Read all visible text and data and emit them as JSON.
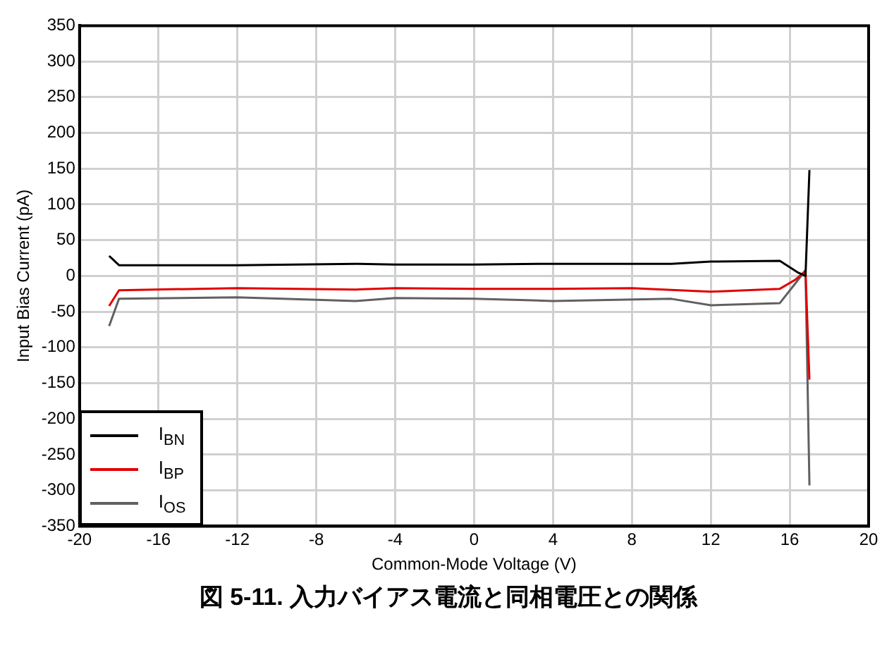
{
  "chart_data": {
    "type": "line",
    "title": "図 5-11. 入力バイアス電流と同相電圧との関係",
    "xlabel": "Common-Mode Voltage (V)",
    "ylabel": "Input Bias Current (pA)",
    "xlim": [
      -20,
      20
    ],
    "xticks": [
      -20,
      -16,
      -12,
      -8,
      -4,
      0,
      4,
      8,
      12,
      16,
      20
    ],
    "ylim": [
      -350,
      350
    ],
    "yticks": [
      -350,
      -300,
      -250,
      -200,
      -150,
      -100,
      -50,
      0,
      50,
      100,
      150,
      200,
      250,
      300,
      350
    ],
    "grid": true,
    "legend": "bottom left",
    "marker": "none",
    "line_style": "solid",
    "series": [
      {
        "name": "I$_{BN}$",
        "color": "#000000",
        "x": [
          -18.5,
          -18,
          -12,
          -6,
          -4,
          0,
          4,
          10,
          12,
          15.5,
          16.4,
          16.8,
          17
        ],
        "values": [
          28,
          15,
          15,
          17,
          16,
          16,
          17,
          17,
          20,
          21,
          5,
          0,
          148
        ]
      },
      {
        "name": "I$_{BP}$",
        "color": "#e00000",
        "x": [
          -18.5,
          -18,
          -12,
          -6,
          -4,
          0,
          4,
          8,
          12,
          15.5,
          16.3,
          16.8,
          17
        ],
        "values": [
          -42,
          -20,
          -17,
          -19,
          -17,
          -18,
          -18,
          -17,
          -22,
          -18,
          -5,
          7,
          -145
        ]
      },
      {
        "name": "I$_{OS}$",
        "color": "#606060",
        "x": [
          -18.5,
          -18,
          -12,
          -6,
          -4,
          0,
          4,
          10,
          12,
          15.5,
          16.3,
          16.8,
          17
        ],
        "values": [
          -70,
          -32,
          -30,
          -35,
          -31,
          -32,
          -35,
          -32,
          -41,
          -38,
          -10,
          8,
          -293
        ]
      }
    ]
  }
}
